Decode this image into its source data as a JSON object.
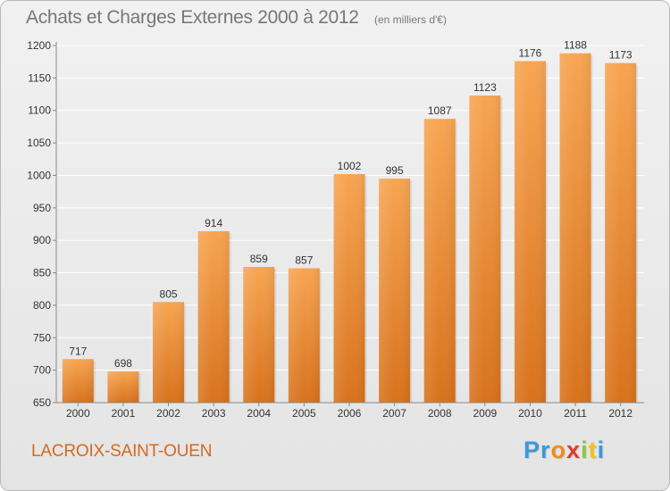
{
  "header": {
    "title": "Achats et Charges Externes 2000 à 2012",
    "subtitle": "(en milliers d'€)"
  },
  "footer": {
    "city": "LACROIX-SAINT-OUEN",
    "logo_letters": [
      {
        "char": "P",
        "color": "#3a9ad9"
      },
      {
        "char": "r",
        "color": "#3a9ad9"
      },
      {
        "char": "o",
        "color": "#f08a1c"
      },
      {
        "char": "x",
        "color": "#e23b2e"
      },
      {
        "char": "i",
        "color": "#8cc63f"
      },
      {
        "char": "t",
        "color": "#f3c21b"
      },
      {
        "char": "i",
        "color": "#3a9ad9"
      }
    ]
  },
  "chart_data": {
    "type": "bar",
    "title": "Achats et Charges Externes 2000 à 2012",
    "subtitle": "(en milliers d'€)",
    "categories": [
      "2000",
      "2001",
      "2002",
      "2003",
      "2004",
      "2005",
      "2006",
      "2007",
      "2008",
      "2009",
      "2010",
      "2011",
      "2012"
    ],
    "values": [
      717,
      698,
      805,
      914,
      859,
      857,
      1002,
      995,
      1087,
      1123,
      1176,
      1188,
      1173
    ],
    "ylim": [
      650,
      1200
    ],
    "yticks": [
      650,
      700,
      750,
      800,
      850,
      900,
      950,
      1000,
      1050,
      1100,
      1150,
      1200
    ],
    "grid": true,
    "bar_color_top": "#f7a552",
    "bar_color_bottom": "#d8721c",
    "grid_color": "#ffffff"
  }
}
